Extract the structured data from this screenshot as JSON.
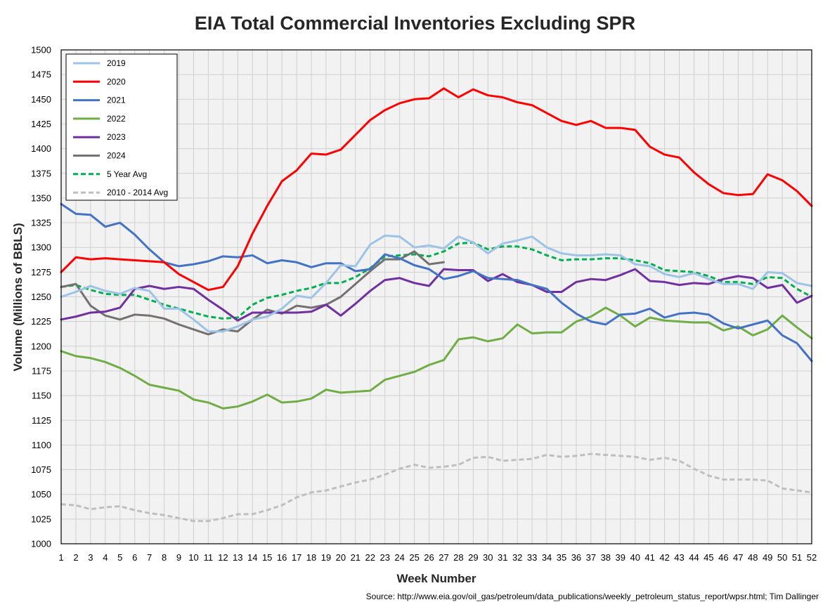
{
  "chart_data": {
    "type": "line",
    "title": "EIA Total Commercial Inventories Excluding SPR",
    "xlabel": "Week Number",
    "ylabel": "Volume (Millions of BBLS)",
    "xlim": [
      1,
      52
    ],
    "ylim": [
      1000,
      1500
    ],
    "y_tick_step": 25,
    "grid": true,
    "legend_position": "top-left",
    "source": "Source: http://www.eia.gov/oil_gas/petroleum/data_publications/weekly_petroleum_status_report/wpsr.html; Tim Dallinger",
    "series": [
      {
        "name": "2019",
        "color": "#9dc3e6",
        "dashed": false,
        "values": [
          1250,
          1255,
          1261,
          1256,
          1253,
          1259,
          1256,
          1238,
          1238,
          1227,
          1215,
          1215,
          1220,
          1227,
          1230,
          1238,
          1251,
          1249,
          1264,
          1282,
          1281,
          1303,
          1312,
          1311,
          1300,
          1302,
          1299,
          1311,
          1305,
          1294,
          1304,
          1307,
          1311,
          1300,
          1294,
          1292,
          1292,
          1293,
          1292,
          1283,
          1281,
          1273,
          1270,
          1274,
          1268,
          1263,
          1263,
          1258,
          1275,
          1274,
          1264,
          1261
        ]
      },
      {
        "name": "2020",
        "color": "#ff0000",
        "dashed": false,
        "values": [
          1275,
          1290,
          1288,
          1289,
          1288,
          1287,
          1286,
          1285,
          1273,
          1265,
          1257,
          1260,
          1281,
          1314,
          1342,
          1367,
          1378,
          1395,
          1394,
          1399,
          1414,
          1429,
          1439,
          1446,
          1450,
          1451,
          1461,
          1452,
          1460,
          1454,
          1452,
          1447,
          1444,
          1436,
          1428,
          1424,
          1428,
          1421,
          1421,
          1419,
          1402,
          1394,
          1391,
          1376,
          1364,
          1355,
          1353,
          1354,
          1374,
          1368,
          1357,
          1342
        ]
      },
      {
        "name": "2021",
        "color": "#4472c4",
        "dashed": false,
        "values": [
          1344,
          1334,
          1333,
          1321,
          1325,
          1313,
          1298,
          1285,
          1281,
          1283,
          1286,
          1291,
          1290,
          1292,
          1284,
          1287,
          1285,
          1280,
          1284,
          1284,
          1276,
          1278,
          1293,
          1289,
          1282,
          1278,
          1268,
          1271,
          1276,
          1269,
          1268,
          1267,
          1262,
          1258,
          1244,
          1233,
          1225,
          1222,
          1232,
          1233,
          1238,
          1229,
          1233,
          1234,
          1232,
          1223,
          1218,
          1222,
          1226,
          1211,
          1203,
          1185
        ]
      },
      {
        "name": "2022",
        "color": "#70ad47",
        "dashed": false,
        "values": [
          1195,
          1190,
          1188,
          1184,
          1178,
          1170,
          1161,
          1158,
          1155,
          1146,
          1143,
          1137,
          1139,
          1144,
          1151,
          1143,
          1144,
          1147,
          1156,
          1153,
          1154,
          1155,
          1166,
          1170,
          1174,
          1181,
          1186,
          1207,
          1209,
          1205,
          1208,
          1222,
          1213,
          1214,
          1214,
          1225,
          1230,
          1239,
          1231,
          1220,
          1229,
          1226,
          1225,
          1224,
          1224,
          1216,
          1220,
          1211,
          1217,
          1231,
          1219,
          1208
        ]
      },
      {
        "name": "2023",
        "color": "#7030a0",
        "dashed": false,
        "values": [
          1227,
          1230,
          1234,
          1235,
          1239,
          1258,
          1261,
          1258,
          1260,
          1258,
          1247,
          1237,
          1226,
          1234,
          1234,
          1234,
          1234,
          1235,
          1242,
          1231,
          1243,
          1256,
          1267,
          1269,
          1264,
          1261,
          1278,
          1277,
          1277,
          1266,
          1273,
          1265,
          1262,
          1255,
          1255,
          1265,
          1268,
          1267,
          1272,
          1278,
          1266,
          1265,
          1262,
          1264,
          1263,
          1268,
          1271,
          1269,
          1259,
          1262,
          1244,
          1251
        ]
      },
      {
        "name": "2024",
        "color": "#767171",
        "dashed": false,
        "values": [
          1260,
          1263,
          1241,
          1231,
          1227,
          1232,
          1231,
          1228,
          1222,
          1217,
          1212,
          1217,
          1215,
          1227,
          1237,
          1233,
          1241,
          1239,
          1242,
          1250,
          1263,
          1276,
          1288,
          1288,
          1296,
          1283,
          1285
        ]
      },
      {
        "name": "5 Year Avg",
        "color": "#00b050",
        "dashed": true,
        "values": [
          1260,
          1262,
          1257,
          1253,
          1252,
          1252,
          1247,
          1242,
          1238,
          1234,
          1230,
          1228,
          1229,
          1242,
          1249,
          1252,
          1256,
          1259,
          1264,
          1264,
          1270,
          1279,
          1291,
          1292,
          1293,
          1291,
          1296,
          1304,
          1305,
          1298,
          1301,
          1301,
          1298,
          1292,
          1287,
          1288,
          1288,
          1289,
          1289,
          1287,
          1284,
          1277,
          1276,
          1275,
          1271,
          1265,
          1265,
          1263,
          1270,
          1269,
          1258,
          1250
        ]
      },
      {
        "name": "2010 - 2014 Avg",
        "color": "#bfbfbf",
        "dashed": true,
        "values": [
          1040,
          1039,
          1035,
          1037,
          1038,
          1034,
          1031,
          1029,
          1026,
          1023,
          1023,
          1026,
          1030,
          1030,
          1034,
          1039,
          1047,
          1052,
          1054,
          1058,
          1062,
          1065,
          1070,
          1076,
          1080,
          1077,
          1078,
          1080,
          1087,
          1088,
          1084,
          1085,
          1086,
          1090,
          1088,
          1089,
          1091,
          1090,
          1089,
          1088,
          1085,
          1087,
          1084,
          1076,
          1069,
          1065,
          1065,
          1065,
          1064,
          1056,
          1054,
          1052
        ]
      }
    ]
  }
}
